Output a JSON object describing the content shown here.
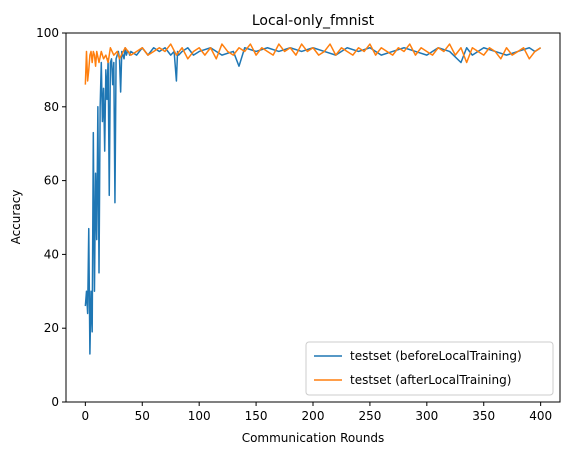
{
  "chart_data": {
    "type": "line",
    "title": "Local-only_fmnist",
    "xlabel": "Communication Rounds",
    "ylabel": "Accuracy",
    "xlim": [
      -17,
      417
    ],
    "ylim": [
      0,
      100
    ],
    "xticks": [
      0,
      50,
      100,
      150,
      200,
      250,
      300,
      350,
      400
    ],
    "yticks": [
      0,
      20,
      40,
      60,
      80,
      100
    ],
    "grid": false,
    "legend_position": "lower-right",
    "series": [
      {
        "name": "testset (beforeLocalTraining)",
        "color": "#1f77b4",
        "x": [
          0,
          1,
          2,
          3,
          4,
          5,
          6,
          7,
          8,
          9,
          10,
          11,
          12,
          13,
          14,
          15,
          16,
          17,
          18,
          19,
          20,
          21,
          22,
          23,
          24,
          25,
          26,
          27,
          28,
          29,
          30,
          31,
          32,
          33,
          34,
          35,
          36,
          37,
          38,
          39,
          40,
          45,
          50,
          55,
          60,
          65,
          70,
          75,
          78,
          80,
          81,
          82,
          85,
          90,
          95,
          100,
          110,
          120,
          130,
          135,
          140,
          150,
          160,
          170,
          180,
          190,
          200,
          210,
          220,
          230,
          240,
          250,
          260,
          270,
          280,
          290,
          300,
          310,
          320,
          330,
          335,
          340,
          350,
          360,
          370,
          380,
          390,
          395,
          400
        ],
        "y": [
          26,
          30,
          24,
          47,
          13,
          30,
          19,
          73,
          30,
          62,
          44,
          80,
          35,
          80,
          92,
          76,
          85,
          68,
          90,
          82,
          93,
          56,
          92,
          93,
          86,
          92,
          54,
          93,
          94,
          95,
          93,
          84,
          95,
          94,
          93,
          96,
          94,
          95,
          95,
          94,
          95,
          94,
          96,
          94,
          96,
          95,
          96,
          94,
          95,
          87,
          95,
          94,
          95,
          96,
          94,
          95,
          96,
          94,
          95,
          91,
          96,
          95,
          96,
          95,
          96,
          95,
          96,
          95,
          94,
          96,
          95,
          96,
          94,
          95,
          96,
          95,
          94,
          96,
          95,
          92,
          96,
          94,
          96,
          95,
          94,
          95,
          96,
          95,
          96
        ]
      },
      {
        "name": "testset (afterLocalTraining)",
        "color": "#ff7f0e",
        "x": [
          0,
          1,
          2,
          3,
          4,
          5,
          6,
          7,
          8,
          9,
          10,
          12,
          14,
          16,
          18,
          20,
          22,
          25,
          28,
          30,
          35,
          40,
          45,
          50,
          55,
          60,
          65,
          70,
          75,
          80,
          85,
          90,
          95,
          100,
          105,
          110,
          115,
          120,
          125,
          130,
          135,
          140,
          145,
          150,
          155,
          160,
          165,
          170,
          175,
          180,
          185,
          190,
          195,
          200,
          205,
          210,
          215,
          220,
          225,
          230,
          235,
          240,
          245,
          250,
          255,
          260,
          265,
          270,
          275,
          280,
          285,
          290,
          295,
          300,
          305,
          310,
          315,
          320,
          325,
          330,
          335,
          340,
          345,
          350,
          355,
          360,
          365,
          370,
          375,
          380,
          385,
          390,
          395,
          400
        ],
        "y": [
          86,
          95,
          87,
          90,
          94,
          95,
          92,
          95,
          94,
          91,
          95,
          92,
          95,
          93,
          94,
          92,
          96,
          94,
          95,
          93,
          96,
          94,
          95,
          96,
          94,
          95,
          96,
          95,
          97,
          94,
          96,
          93,
          95,
          96,
          94,
          96,
          93,
          97,
          95,
          94,
          96,
          95,
          97,
          94,
          96,
          95,
          94,
          97,
          95,
          96,
          94,
          97,
          95,
          96,
          94,
          95,
          97,
          94,
          96,
          95,
          94,
          96,
          95,
          97,
          94,
          96,
          95,
          94,
          96,
          95,
          97,
          94,
          96,
          95,
          94,
          96,
          95,
          97,
          94,
          96,
          92,
          96,
          95,
          94,
          96,
          95,
          93,
          96,
          94,
          95,
          96,
          93,
          95,
          96
        ]
      }
    ]
  }
}
